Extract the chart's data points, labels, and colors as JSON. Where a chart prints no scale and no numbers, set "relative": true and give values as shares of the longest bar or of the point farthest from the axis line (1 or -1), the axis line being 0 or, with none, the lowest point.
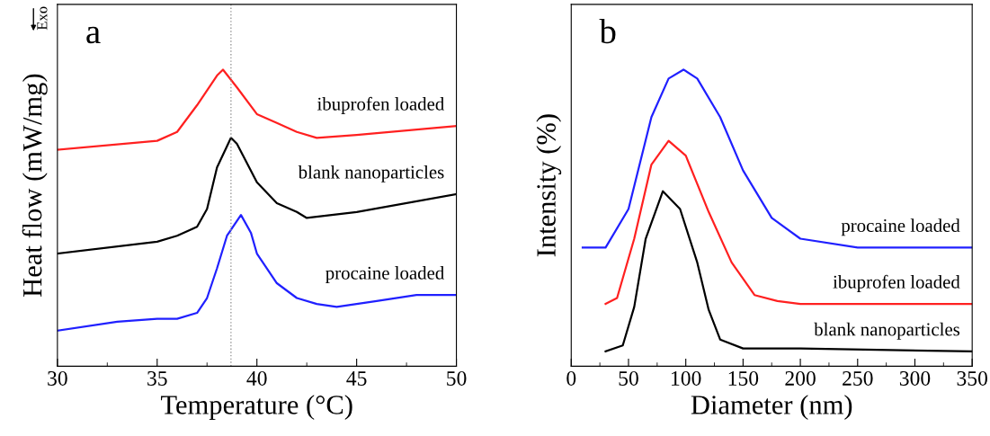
{
  "chart_data": [
    {
      "type": "line",
      "title": "a",
      "xlabel": "Temperature (°C)",
      "ylabel": "Heat flow (mW/mg)",
      "relative": true,
      "xlim": [
        30,
        50
      ],
      "xticks": [
        30,
        35,
        40,
        45,
        50
      ],
      "tick_labels": "x",
      "annotations": [
        "Exo"
      ],
      "ref_lines": [
        {
          "axis": "x",
          "value": 38.7,
          "color": "#999999",
          "line_style": "dotted"
        }
      ],
      "series": [
        {
          "name": "ibuprofen loaded",
          "color": "#ff2020",
          "x": [
            30,
            35,
            36,
            37,
            38,
            38.3,
            39,
            40,
            41,
            42,
            43,
            45,
            50
          ],
          "values": [
            0.73,
            0.76,
            0.79,
            0.88,
            0.98,
            1.0,
            0.94,
            0.85,
            0.82,
            0.79,
            0.77,
            0.78,
            0.81
          ]
        },
        {
          "name": "blank nanoparticles",
          "color": "#000000",
          "x": [
            30,
            35,
            36,
            37,
            37.5,
            38,
            38.7,
            39,
            40,
            41,
            42,
            42.5,
            45,
            50
          ],
          "values": [
            0.38,
            0.42,
            0.44,
            0.47,
            0.53,
            0.67,
            0.77,
            0.75,
            0.62,
            0.55,
            0.52,
            0.5,
            0.52,
            0.58
          ]
        },
        {
          "name": "procaine loaded",
          "color": "#2020ff",
          "x": [
            30,
            33,
            35,
            36,
            37,
            37.5,
            38,
            38.5,
            39.2,
            39.7,
            40,
            41,
            42,
            43,
            44,
            46,
            48,
            50
          ],
          "values": [
            0.12,
            0.15,
            0.16,
            0.16,
            0.18,
            0.23,
            0.33,
            0.44,
            0.51,
            0.45,
            0.38,
            0.28,
            0.23,
            0.21,
            0.2,
            0.22,
            0.24,
            0.24
          ]
        }
      ]
    },
    {
      "type": "line",
      "title": "b",
      "xlabel": "Diameter (nm)",
      "ylabel": "Intensity (%)",
      "relative": true,
      "xlim": [
        0,
        350
      ],
      "xticks": [
        0,
        50,
        100,
        150,
        200,
        250,
        300,
        350
      ],
      "tick_labels": "x",
      "series": [
        {
          "name": "procaine loaded",
          "color": "#2020ff",
          "x": [
            10,
            30,
            50,
            70,
            85,
            98,
            110,
            130,
            150,
            175,
            200,
            250,
            350
          ],
          "values": [
            0.4,
            0.4,
            0.53,
            0.84,
            0.97,
            1.0,
            0.97,
            0.84,
            0.66,
            0.5,
            0.43,
            0.4,
            0.4
          ]
        },
        {
          "name": "ibuprofen loaded",
          "color": "#ff2020",
          "x": [
            30,
            40,
            55,
            70,
            85,
            100,
            120,
            140,
            160,
            180,
            200,
            350
          ],
          "values": [
            0.21,
            0.23,
            0.43,
            0.68,
            0.76,
            0.71,
            0.52,
            0.35,
            0.24,
            0.22,
            0.21,
            0.21
          ]
        },
        {
          "name": "blank nanoparticles",
          "color": "#000000",
          "x": [
            30,
            45,
            55,
            65,
            80,
            95,
            110,
            120,
            130,
            150,
            200,
            350
          ],
          "values": [
            0.05,
            0.07,
            0.2,
            0.43,
            0.59,
            0.53,
            0.35,
            0.19,
            0.09,
            0.06,
            0.06,
            0.05
          ]
        }
      ]
    }
  ]
}
